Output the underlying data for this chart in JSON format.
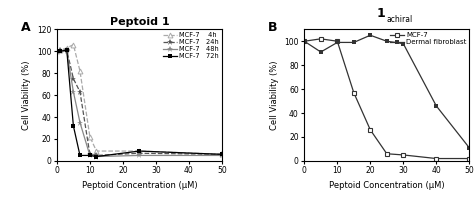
{
  "panel_A": {
    "title": "Peptoid 1",
    "xlabel": "Peptoid Concentration (μM)",
    "ylabel": "Cell Viability (%)",
    "xlim": [
      0,
      50
    ],
    "ylim": [
      0,
      120
    ],
    "yticks": [
      0,
      20,
      40,
      60,
      80,
      100,
      120
    ],
    "xticks": [
      0,
      10,
      20,
      30,
      40,
      50
    ],
    "series": [
      {
        "label": "MCF-7    4h",
        "x": [
          0,
          1,
          3,
          5,
          7,
          10,
          12,
          25,
          50
        ],
        "y": [
          100,
          101,
          103,
          106,
          82,
          22,
          9,
          9,
          6
        ],
        "color": "#aaaaaa",
        "linestyle": "--",
        "marker": "^",
        "markerfacecolor": "white",
        "markersize": 3.5
      },
      {
        "label": "MCF-7   24h",
        "x": [
          0,
          1,
          3,
          5,
          7,
          10,
          12,
          25,
          50
        ],
        "y": [
          100,
          101,
          101,
          75,
          63,
          6,
          5,
          7,
          6
        ],
        "color": "#555555",
        "linestyle": "--",
        "marker": "*",
        "markerfacecolor": "#555555",
        "markersize": 5
      },
      {
        "label": "MCF-7   48h",
        "x": [
          0,
          1,
          3,
          5,
          7,
          10,
          12,
          25,
          50
        ],
        "y": [
          100,
          100,
          100,
          63,
          35,
          5,
          4,
          5,
          5
        ],
        "color": "#888888",
        "linestyle": "-",
        "marker": "*",
        "markerfacecolor": "#888888",
        "markersize": 5
      },
      {
        "label": "MCF-7   72h",
        "x": [
          0,
          1,
          3,
          5,
          7,
          10,
          12,
          25,
          50
        ],
        "y": [
          100,
          100,
          101,
          32,
          5,
          5,
          4,
          9,
          6
        ],
        "color": "#000000",
        "linestyle": "-",
        "marker": "s",
        "markerfacecolor": "#000000",
        "markersize": 3.5
      }
    ]
  },
  "panel_B": {
    "title": "1",
    "title_sub": "achiral",
    "xlabel": "Peptoid Concentration (μM)",
    "ylabel": "Cell Viability (%)",
    "xlim": [
      0,
      50
    ],
    "ylim": [
      0,
      110
    ],
    "yticks": [
      0,
      20,
      40,
      60,
      80,
      100
    ],
    "xticks": [
      0,
      10,
      20,
      30,
      40,
      50
    ],
    "series": [
      {
        "label": "MCF-7",
        "x": [
          0,
          5,
          10,
          15,
          20,
          25,
          30,
          40,
          50
        ],
        "y": [
          100,
          102,
          100,
          57,
          26,
          6,
          5,
          2,
          2
        ],
        "color": "#333333",
        "linestyle": "-",
        "marker": "s",
        "markerfacecolor": "white",
        "markersize": 3.5
      },
      {
        "label": "Dermal fibroblast",
        "x": [
          0,
          5,
          10,
          15,
          20,
          25,
          30,
          40,
          50
        ],
        "y": [
          100,
          91,
          99,
          99,
          105,
          100,
          98,
          46,
          11
        ],
        "color": "#333333",
        "linestyle": "-",
        "marker": "s",
        "markerfacecolor": "#333333",
        "markersize": 3.5
      }
    ]
  }
}
